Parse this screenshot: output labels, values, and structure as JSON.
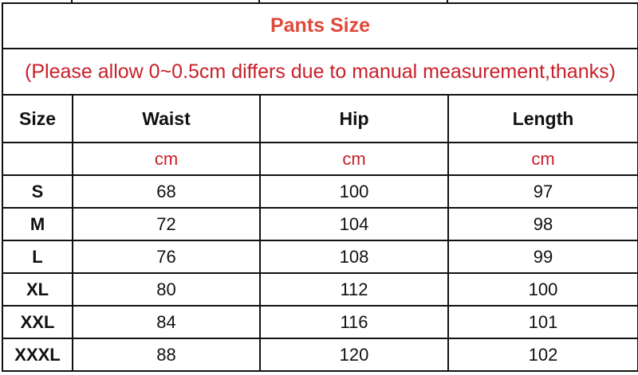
{
  "title": "Pants Size",
  "note": "(Please allow 0~0.5cm differs due to manual measurement,thanks)",
  "headers": [
    "Size",
    "Waist",
    "Hip",
    "Length"
  ],
  "units": [
    "",
    "cm",
    "cm",
    "cm"
  ],
  "rows": [
    {
      "size": "S",
      "waist": "68",
      "hip": "100",
      "length": "97"
    },
    {
      "size": "M",
      "waist": "72",
      "hip": "104",
      "length": "98"
    },
    {
      "size": "L",
      "waist": "76",
      "hip": "108",
      "length": "99"
    },
    {
      "size": "XL",
      "waist": "80",
      "hip": "112",
      "length": "100"
    },
    {
      "size": "XXL",
      "waist": "84",
      "hip": "116",
      "length": "101"
    },
    {
      "size": "XXXL",
      "waist": "88",
      "hip": "120",
      "length": "102"
    }
  ],
  "colors": {
    "title": "#e0493a",
    "note": "#c8202a",
    "unit": "#c8202a",
    "border": "#111111"
  }
}
